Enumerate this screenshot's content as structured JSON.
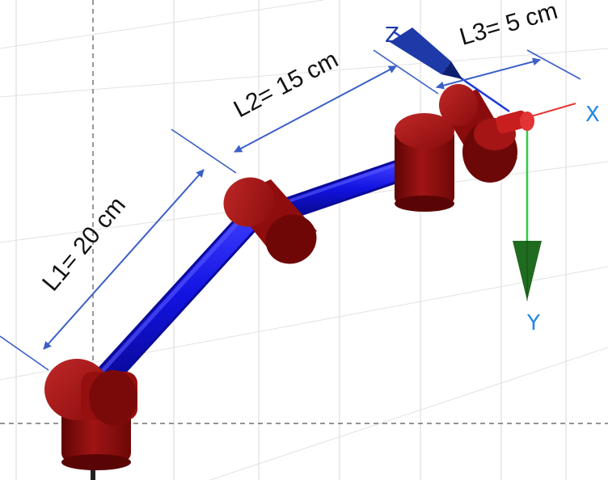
{
  "links": [
    {
      "id": "L1",
      "label": "L1= 20 cm",
      "length_cm": 20
    },
    {
      "id": "L2",
      "label": "L2= 15 cm",
      "length_cm": 15
    },
    {
      "id": "L3",
      "label": "L3= 5 cm",
      "length_cm": 5
    }
  ],
  "axes": [
    {
      "id": "x",
      "label": "X",
      "color": "#e53935"
    },
    {
      "id": "y",
      "label": "Y",
      "color": "#1e88e5"
    },
    {
      "id": "z",
      "label": "Z",
      "color": "#1e3aa8"
    }
  ],
  "colors": {
    "link": "#1515e6",
    "joint": "#8b0a0a",
    "dimension_line": "#3a5fc8",
    "y_axis_arrow": "#1f6b1f"
  }
}
